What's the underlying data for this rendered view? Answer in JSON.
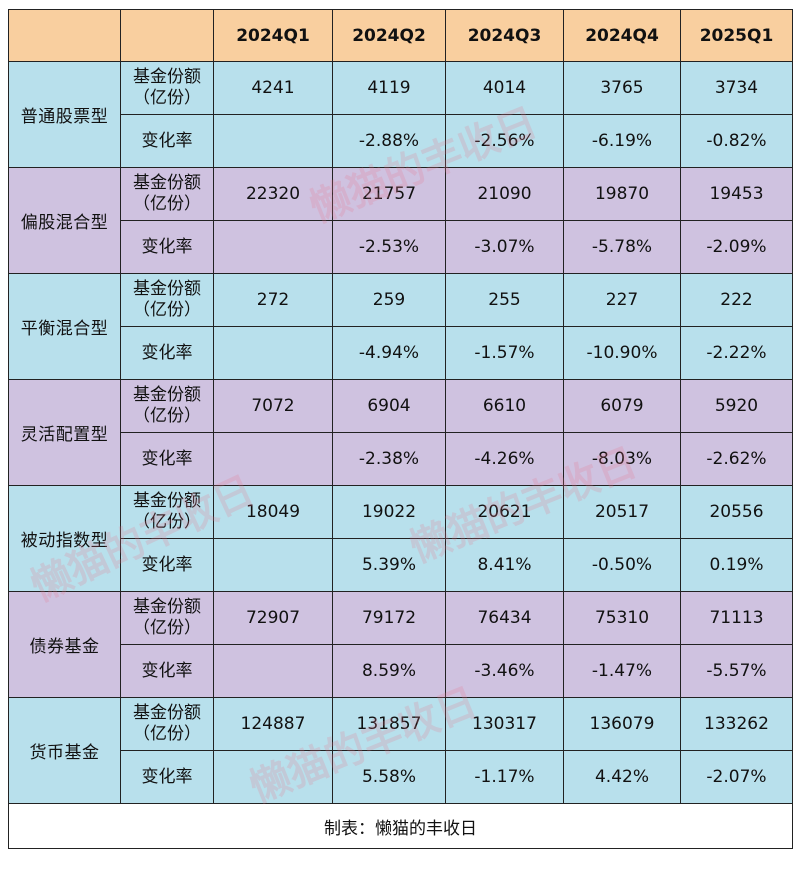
{
  "columns": [
    "2024Q1",
    "2024Q2",
    "2024Q3",
    "2024Q4",
    "2025Q1"
  ],
  "metric_labels": {
    "share_line1": "基金份额",
    "share_line2": "（亿份）",
    "rate": "变化率"
  },
  "rows": [
    {
      "category": "普通股票型",
      "share": [
        "4241",
        "4119",
        "4014",
        "3765",
        "3734"
      ],
      "rate": [
        "",
        "-2.88%",
        "-2.56%",
        "-6.19%",
        "-0.82%"
      ]
    },
    {
      "category": "偏股混合型",
      "share": [
        "22320",
        "21757",
        "21090",
        "19870",
        "19453"
      ],
      "rate": [
        "",
        "-2.53%",
        "-3.07%",
        "-5.78%",
        "-2.09%"
      ]
    },
    {
      "category": "平衡混合型",
      "share": [
        "272",
        "259",
        "255",
        "227",
        "222"
      ],
      "rate": [
        "",
        "-4.94%",
        "-1.57%",
        "-10.90%",
        "-2.22%"
      ]
    },
    {
      "category": "灵活配置型",
      "share": [
        "7072",
        "6904",
        "6610",
        "6079",
        "5920"
      ],
      "rate": [
        "",
        "-2.38%",
        "-4.26%",
        "-8.03%",
        "-2.62%"
      ]
    },
    {
      "category": "被动指数型",
      "share": [
        "18049",
        "19022",
        "20621",
        "20517",
        "20556"
      ],
      "rate": [
        "",
        "5.39%",
        "8.41%",
        "-0.50%",
        "0.19%"
      ]
    },
    {
      "category": "债券基金",
      "share": [
        "72907",
        "79172",
        "76434",
        "75310",
        "71113"
      ],
      "rate": [
        "",
        "8.59%",
        "-3.46%",
        "-1.47%",
        "-5.57%"
      ]
    },
    {
      "category": "货币基金",
      "share": [
        "124887",
        "131857",
        "130317",
        "136079",
        "133262"
      ],
      "rate": [
        "",
        "5.58%",
        "-1.17%",
        "4.42%",
        "-2.07%"
      ]
    }
  ],
  "footer": "制表：懒猫的丰收日",
  "watermark_text": "懒猫的丰收日",
  "colors": {
    "header": "#f9cf9f",
    "blue_group": "#b8e0ec",
    "purple_group": "#cfc2e0",
    "watermark": "#e6788c"
  }
}
